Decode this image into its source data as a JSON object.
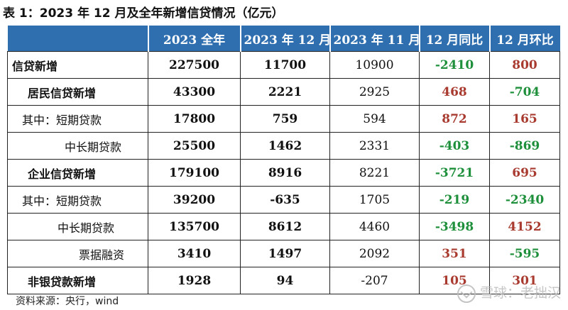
{
  "title": "表 1：2023 年 12 月及全年新增信贷情况（亿元）",
  "headers": [
    "",
    "2023 全年",
    "2023 年 12 月",
    "2023 年 11 月",
    "12 月同比",
    "12 月环比"
  ],
  "rows": [
    {
      "label": "信贷新增",
      "full_year": "227500",
      "dec": "11700",
      "nov": "10900",
      "yoy": "-2410",
      "mom": "800"
    },
    {
      "label": "居民信贷新增",
      "full_year": "43300",
      "dec": "2221",
      "nov": "2925",
      "yoy": "468",
      "mom": "-704"
    },
    {
      "label": "其中：短期贷款",
      "full_year": "17800",
      "dec": "759",
      "nov": "594",
      "yoy": "872",
      "mom": "165"
    },
    {
      "label": "中长期贷款",
      "full_year": "25500",
      "dec": "1462",
      "nov": "2331",
      "yoy": "-403",
      "mom": "-869"
    },
    {
      "label": "企业信贷新增",
      "full_year": "179100",
      "dec": "8916",
      "nov": "8221",
      "yoy": "-3721",
      "mom": "695"
    },
    {
      "label": "其中：短期贷款",
      "full_year": "39200",
      "dec": "-635",
      "nov": "1705",
      "yoy": "-219",
      "mom": "-2340"
    },
    {
      "label": "中长期贷款",
      "full_year": "135700",
      "dec": "8612",
      "nov": "4460",
      "yoy": "-3498",
      "mom": "4152"
    },
    {
      "label": "票据融资",
      "full_year": "3410",
      "dec": "1497",
      "nov": "2092",
      "yoy": "351",
      "mom": "-595"
    },
    {
      "label": "非银贷款新增",
      "full_year": "1928",
      "dec": "94",
      "nov": "-207",
      "yoy": "105",
      "mom": "301"
    }
  ],
  "source": "资料来源：央行，wind",
  "watermark": "雪球：老拙汉",
  "colors": {
    "header_bg": "#2f6fb0",
    "negative": "#1e8f3a",
    "positive": "#a83a2f"
  }
}
